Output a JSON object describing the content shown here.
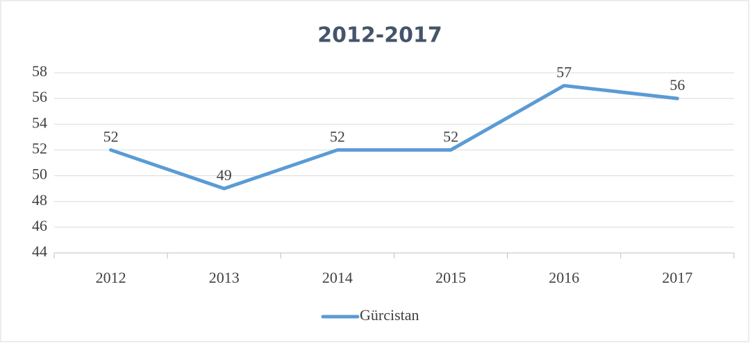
{
  "chart_data": {
    "type": "line",
    "title": "2012-2017",
    "categories": [
      "2012",
      "2013",
      "2014",
      "2015",
      "2016",
      "2017"
    ],
    "series": [
      {
        "name": "Gürcistan",
        "color": "#5b9bd5",
        "values": [
          52,
          49,
          52,
          52,
          57,
          56
        ]
      }
    ],
    "ylim": [
      44,
      58
    ],
    "yticks": [
      44,
      46,
      48,
      50,
      52,
      54,
      56,
      58
    ],
    "grid": true,
    "legend": "bottom",
    "data_labels": true
  }
}
